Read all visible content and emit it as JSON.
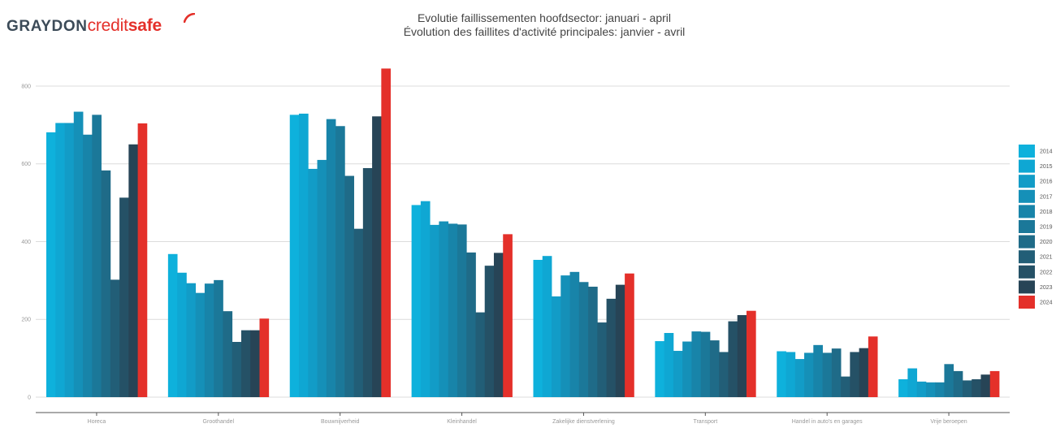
{
  "logo": {
    "part1": "GRAYDON",
    "part2": "credit",
    "part3": "safe"
  },
  "header": {
    "title_nl": "Evolutie faillissementen hoofdsector: januari - april",
    "title_fr": "Évolution des faillites d'activité principales: janvier - avril"
  },
  "chart_data": {
    "type": "bar",
    "title": "Evolutie faillissementen hoofdsector: januari - april",
    "subtitle": "Évolution des faillites d'activité principales: janvier - avril",
    "ylim": [
      0,
      850
    ],
    "yticks": [
      0,
      200,
      400,
      600,
      800
    ],
    "grid": true,
    "legend_position": "right",
    "categories": [
      "Horeca",
      "Groothandel",
      "Bouwnijverheid",
      "Kleinhandel",
      "Zakelijke dienstverlening",
      "Transport",
      "Handel in auto's en garages",
      "Vrije beroepen"
    ],
    "series": [
      {
        "name": "2014",
        "color": "#0eb1dc",
        "values": [
          681,
          368,
          726,
          494,
          353,
          144,
          118,
          46
        ]
      },
      {
        "name": "2015",
        "color": "#0fa7d3",
        "values": [
          705,
          320,
          729,
          504,
          363,
          165,
          116,
          74
        ]
      },
      {
        "name": "2016",
        "color": "#129cc7",
        "values": [
          705,
          293,
          587,
          443,
          259,
          119,
          98,
          40
        ]
      },
      {
        "name": "2017",
        "color": "#1590b8",
        "values": [
          734,
          268,
          610,
          452,
          313,
          143,
          114,
          38
        ]
      },
      {
        "name": "2018",
        "color": "#1884a9",
        "values": [
          675,
          292,
          715,
          446,
          322,
          169,
          134,
          38
        ]
      },
      {
        "name": "2019",
        "color": "#1b7899",
        "values": [
          726,
          301,
          697,
          444,
          296,
          168,
          114,
          85
        ]
      },
      {
        "name": "2020",
        "color": "#1f6b88",
        "values": [
          583,
          221,
          569,
          372,
          284,
          146,
          125,
          67
        ]
      },
      {
        "name": "2021",
        "color": "#225e77",
        "values": [
          302,
          142,
          433,
          218,
          192,
          116,
          53,
          43
        ]
      },
      {
        "name": "2022",
        "color": "#255166",
        "values": [
          513,
          172,
          589,
          338,
          253,
          195,
          116,
          46
        ]
      },
      {
        "name": "2023",
        "color": "#274456",
        "values": [
          650,
          172,
          722,
          371,
          289,
          211,
          126,
          58
        ]
      },
      {
        "name": "2024",
        "color": "#e4302a",
        "values": [
          704,
          202,
          845,
          419,
          318,
          222,
          156,
          67
        ]
      }
    ]
  }
}
